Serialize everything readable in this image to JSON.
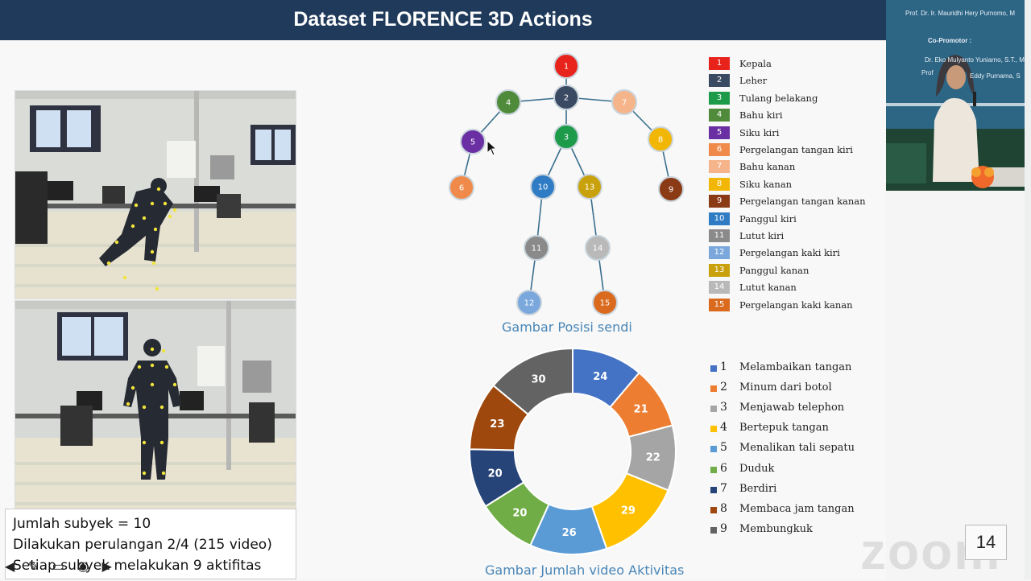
{
  "slide": {
    "title": "Dataset FLORENCE 3D Actions",
    "info_lines": [
      "Jumlah subyek = 10",
      "Dilakukan perulangan 2/4  (215 video)",
      "Setiap subyek melakukan 9 aktifitas"
    ],
    "page_number": "14",
    "zoom_watermark": "zoom"
  },
  "skeleton": {
    "caption": "Gambar Posisi sendi",
    "joints": [
      {
        "id": "1",
        "label": "Kepala",
        "color": "#e8231c"
      },
      {
        "id": "2",
        "label": "Leher",
        "color": "#3b4a63"
      },
      {
        "id": "3",
        "label": "Tulang belakang",
        "color": "#1e9a4b"
      },
      {
        "id": "4",
        "label": "Bahu kiri",
        "color": "#4f8b3a"
      },
      {
        "id": "5",
        "label": "Siku kiri",
        "color": "#6a2fa3"
      },
      {
        "id": "6",
        "label": "Pergelangan tangan kiri",
        "color": "#f08a4b"
      },
      {
        "id": "7",
        "label": "Bahu kanan",
        "color": "#f6b48a"
      },
      {
        "id": "8",
        "label": "Siku kanan",
        "color": "#f2b705"
      },
      {
        "id": "9",
        "label": "Pergelangan tangan kanan",
        "color": "#8b3a16"
      },
      {
        "id": "10",
        "label": "Panggul kiri",
        "color": "#2f7cc4"
      },
      {
        "id": "11",
        "label": "Lutut kiri",
        "color": "#8a8a8a"
      },
      {
        "id": "12",
        "label": "Pergelangan kaki kiri",
        "color": "#7aa7dc"
      },
      {
        "id": "13",
        "label": "Panggul kanan",
        "color": "#c9a10c"
      },
      {
        "id": "14",
        "label": "Lutut kanan",
        "color": "#b9b9b9"
      },
      {
        "id": "15",
        "label": "Pergelangan kaki kanan",
        "color": "#d96a1e"
      }
    ]
  },
  "chart_data": {
    "type": "pie",
    "donut": true,
    "caption": "Gambar Jumlah video Aktivitas",
    "categories": [
      "1",
      "2",
      "3",
      "4",
      "5",
      "6",
      "7",
      "8",
      "9"
    ],
    "labels": [
      "Melambaikan tangan",
      "Minum dari botol",
      "Menjawab telephon",
      "Bertepuk tangan",
      "Menalikan tali sepatu",
      "Duduk",
      "Berdiri",
      "Membaca jam tangan",
      "Membungkuk"
    ],
    "values": [
      24,
      21,
      22,
      29,
      26,
      20,
      20,
      23,
      30
    ],
    "colors": [
      "#4472c4",
      "#ed7d31",
      "#a5a5a5",
      "#ffc000",
      "#5b9bd5",
      "#70ad47",
      "#264478",
      "#9e480e",
      "#636363"
    ]
  },
  "video": {
    "lines": [
      "Prof. Dr. Ir. Mauridhi Hery Purnomo, M",
      "Co-Promotor :",
      "Dr. Eko Mulyanto Yuniarno, S.T., M",
      "Prof",
      "Eddy Purnama, S"
    ]
  }
}
